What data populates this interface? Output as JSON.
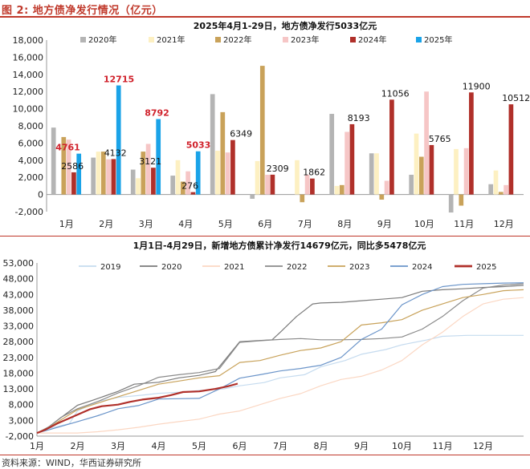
{
  "figure": {
    "title": "图 2: 地方债净发行情况（亿元）",
    "source": "资料来源：WIND，华西证券研究所"
  },
  "chart_data": [
    {
      "type": "bar",
      "title": "2025年4月1-29日，地方债净发行5033亿元",
      "categories": [
        "1月",
        "2月",
        "3月",
        "4月",
        "5月",
        "6月",
        "7月",
        "8月",
        "9月",
        "10月",
        "11月",
        "12月"
      ],
      "ylim": [
        -2000,
        18000
      ],
      "yticks": [
        "-2,000",
        "0",
        "2,000",
        "4,000",
        "6,000",
        "8,000",
        "10,000",
        "12,000",
        "14,000",
        "16,000",
        "18,000"
      ],
      "legend_position": "top",
      "series": [
        {
          "name": "2020年",
          "color": "#b4b4b4",
          "values": [
            7800,
            4300,
            2900,
            2200,
            11700,
            -500,
            null,
            9400,
            4800,
            2300,
            -2100,
            1200
          ]
        },
        {
          "name": "2021年",
          "color": "#fdf0c2",
          "values": [
            null,
            5000,
            1900,
            4000,
            5100,
            3900,
            4000,
            1000,
            4800,
            7100,
            5300,
            2800
          ]
        },
        {
          "name": "2022年",
          "color": "#c9a25a",
          "values": [
            6700,
            5000,
            5000,
            1500,
            9600,
            15000,
            -900,
            1100,
            -600,
            4400,
            -1300,
            300
          ]
        },
        {
          "name": "2023年",
          "color": "#f6c6c6",
          "values": [
            6400,
            4100,
            5900,
            2700,
            4900,
            2300,
            2300,
            7300,
            1600,
            12000,
            5400,
            1100
          ]
        },
        {
          "name": "2024年",
          "color": "#b0302a",
          "values": [
            2586,
            4132,
            3121,
            276,
            6349,
            2309,
            1862,
            8193,
            11056,
            5765,
            11900,
            10512
          ]
        },
        {
          "name": "2025年",
          "color": "#1aa3e8",
          "values": [
            4761,
            12715,
            8792,
            5033,
            null,
            null,
            null,
            null,
            null,
            null,
            null,
            null
          ]
        }
      ],
      "data_labels": {
        "2024年": [
          "2586",
          "4132",
          "3121",
          "276",
          "6349",
          "2309",
          "1862",
          "8193",
          "11056",
          "5765",
          "11900",
          "10512"
        ],
        "2025年": [
          "4761",
          "12715",
          "8792",
          "5033"
        ]
      }
    },
    {
      "type": "line",
      "title": "1月1日-4月29日，新增地方债累计净发行14679亿元，同比多5478亿元",
      "categories": [
        "1月",
        "2月",
        "3月",
        "4月",
        "5月",
        "6月",
        "7月",
        "8月",
        "9月",
        "10月",
        "11月",
        "12月"
      ],
      "ylim": [
        -2000,
        53000
      ],
      "yticks": [
        "-2,000",
        "3,000",
        "8,000",
        "13,000",
        "18,000",
        "23,000",
        "28,000",
        "33,000",
        "38,000",
        "43,000",
        "48,000",
        "53,000"
      ],
      "legend_position": "top",
      "series": [
        {
          "name": "2019",
          "color": "#c5dbef",
          "width": 1.2,
          "x": [
            0,
            0.2,
            0.8,
            1,
            1.5,
            2,
            2.6,
            3,
            3.6,
            4,
            4.6,
            5,
            5.6,
            6,
            6.6,
            7,
            7.6,
            8,
            8.6,
            9,
            9.6,
            10,
            10.6,
            11,
            11.6,
            12
          ],
          "y": [
            -1000,
            100,
            2000,
            6000,
            9000,
            10300,
            11000,
            11600,
            12000,
            12500,
            13000,
            14000,
            15000,
            16500,
            17500,
            20000,
            22000,
            24000,
            25500,
            27000,
            28500,
            29700,
            30000,
            30000,
            30000,
            30000
          ]
        },
        {
          "name": "2020",
          "color": "#7a7a7a",
          "width": 1.2,
          "x": [
            0,
            0.2,
            0.5,
            1,
            1.4,
            2,
            2.4,
            3,
            3.5,
            4,
            4.4,
            5,
            5.4,
            5.8,
            6,
            6.4,
            6.8,
            7,
            7.5,
            8,
            8.5,
            9,
            9.5,
            10,
            10.5,
            11,
            11.5,
            12
          ],
          "y": [
            -1000,
            0,
            3000,
            7800,
            9500,
            12200,
            14500,
            15100,
            16500,
            17300,
            18500,
            28000,
            28300,
            28600,
            31000,
            36000,
            40000,
            40300,
            40500,
            41000,
            41500,
            42000,
            44000,
            44500,
            44800,
            45200,
            45500,
            45900
          ]
        },
        {
          "name": "2021",
          "color": "#fbd7c3",
          "width": 1.2,
          "x": [
            0,
            0.5,
            1,
            1.5,
            2,
            2.5,
            3,
            3.5,
            4,
            4.5,
            5,
            5.5,
            6,
            6.5,
            7,
            7.5,
            8,
            8.5,
            9,
            9.5,
            10,
            10.5,
            11,
            11.5,
            12
          ],
          "y": [
            -1000,
            -1000,
            -1000,
            -600,
            0,
            800,
            1800,
            2600,
            3400,
            5000,
            6000,
            8000,
            10000,
            11500,
            14000,
            16000,
            17000,
            19000,
            22000,
            27000,
            31000,
            36000,
            40000,
            41500,
            42000
          ]
        },
        {
          "name": "2022",
          "color": "#8a8a8a",
          "width": 1.2,
          "x": [
            0,
            0.3,
            0.6,
            1,
            1.5,
            2,
            2.5,
            3,
            3.5,
            4,
            4.5,
            5,
            5.5,
            6,
            6.5,
            7,
            7.5,
            8,
            8.5,
            9,
            9.5,
            10,
            10.5,
            11,
            11.5,
            12
          ],
          "y": [
            -1000,
            1000,
            4000,
            6700,
            9000,
            11700,
            14000,
            16700,
            17500,
            18200,
            19500,
            27800,
            28300,
            28700,
            29000,
            28600,
            28600,
            28700,
            29000,
            29500,
            32000,
            36000,
            41000,
            45000,
            46000,
            46400
          ]
        },
        {
          "name": "2023",
          "color": "#c8a25a",
          "width": 1.2,
          "x": [
            0,
            0.3,
            0.7,
            1,
            1.5,
            2,
            2.5,
            3,
            3.5,
            4,
            4.5,
            5,
            5.5,
            6,
            6.5,
            7,
            7.5,
            8,
            8.5,
            9,
            9.5,
            10,
            10.5,
            11,
            11.5,
            12
          ],
          "y": [
            -1000,
            800,
            4000,
            6400,
            8500,
            10500,
            12500,
            14500,
            15500,
            16500,
            17200,
            21400,
            22000,
            23700,
            25200,
            26000,
            28000,
            33300,
            34000,
            35000,
            38000,
            40000,
            42000,
            43000,
            44200,
            44500
          ]
        },
        {
          "name": "2024",
          "color": "#6a94c9",
          "width": 1.2,
          "x": [
            0,
            0.3,
            0.7,
            1,
            1.5,
            2,
            2.5,
            3,
            3.5,
            4,
            4.5,
            5,
            5.5,
            6,
            6.5,
            7,
            7.5,
            8,
            8.5,
            9,
            9.5,
            10,
            10.5,
            11,
            11.5,
            12
          ],
          "y": [
            -1000,
            0,
            1500,
            2600,
            4500,
            6700,
            7700,
            9800,
            9900,
            10000,
            13000,
            16400,
            17500,
            18700,
            19500,
            20500,
            23000,
            28700,
            32000,
            39700,
            43000,
            45500,
            46200,
            46400,
            46600,
            46700
          ]
        },
        {
          "name": "2025",
          "color": "#b0302a",
          "width": 2.2,
          "x": [
            0,
            0.2,
            0.5,
            1,
            1.3,
            1.6,
            2,
            2.3,
            2.6,
            3,
            3.3,
            3.6,
            4,
            4.4,
            4.7,
            4.95
          ],
          "y": [
            -1000,
            0,
            2000,
            4800,
            6500,
            7500,
            8000,
            8900,
            9600,
            10200,
            11000,
            12000,
            12200,
            13000,
            13800,
            14679
          ]
        }
      ]
    }
  ]
}
